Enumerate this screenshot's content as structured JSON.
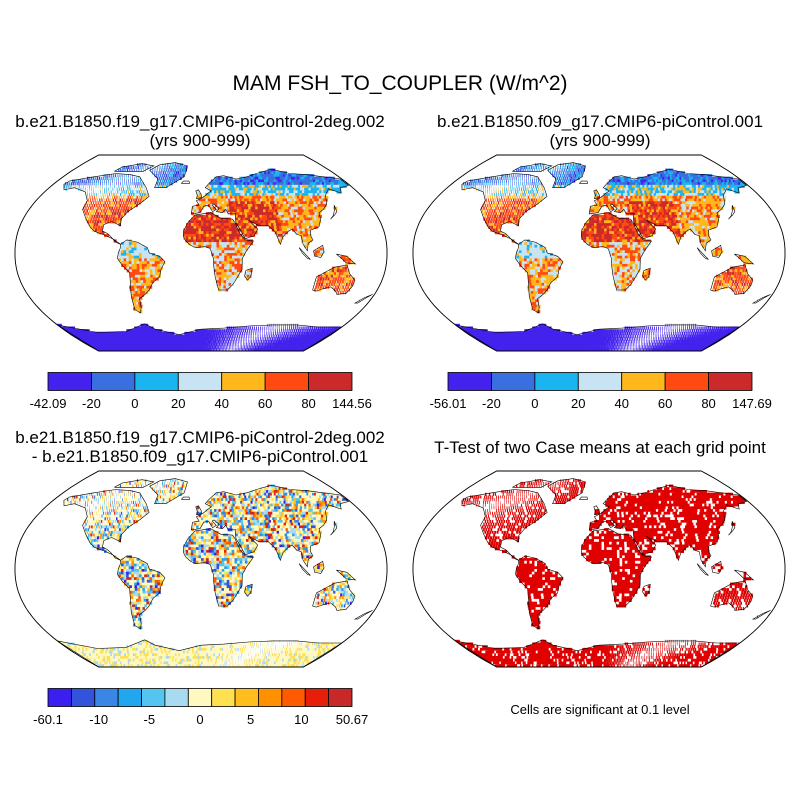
{
  "main_title": "MAM FSH_TO_COUPLER (W/m^2)",
  "panels": [
    {
      "id": "case1",
      "title_line1": "b.e21.B1850.f19_g17.CMIP6-piControl-2deg.002",
      "title_line2": "(yrs 900-999)",
      "colorbar": {
        "colors": [
          "#4422ee",
          "#3a6fe0",
          "#1ab4f0",
          "#c8e4f4",
          "#ffb81c",
          "#ff4a12",
          "#cc2a2a"
        ],
        "labels": [
          "-42.09",
          "-20",
          "0",
          "20",
          "40",
          "60",
          "80",
          "144.56"
        ]
      }
    },
    {
      "id": "case2",
      "title_line1": "b.e21.B1850.f09_g17.CMIP6-piControl.001",
      "title_line2": "(yrs 900-999)",
      "colorbar": {
        "colors": [
          "#4422ee",
          "#3a6fe0",
          "#1ab4f0",
          "#c8e4f4",
          "#ffb81c",
          "#ff4a12",
          "#cc2a2a"
        ],
        "labels": [
          "-56.01",
          "-20",
          "0",
          "20",
          "40",
          "60",
          "80",
          "147.69"
        ]
      }
    },
    {
      "id": "difference",
      "title_line1": "b.e21.B1850.f19_g17.CMIP6-piControl-2deg.002",
      "title_line2": "- b.e21.B1850.f09_g17.CMIP6-piControl.001",
      "colorbar": {
        "colors": [
          "#3a1ff0",
          "#3253dc",
          "#3a86e6",
          "#22a6f0",
          "#54c4f0",
          "#a8daf2",
          "#fff8c0",
          "#ffe050",
          "#ffbe1e",
          "#ff9000",
          "#ff5a00",
          "#e61e0a",
          "#c82828"
        ],
        "labels": [
          "-60.1",
          "-10",
          "-5",
          "0",
          "5",
          "10",
          "50.67"
        ]
      }
    },
    {
      "id": "ttest",
      "title_line1": "T-Test of two Case means at each grid point",
      "note": "Cells are significant at 0.1 level"
    }
  ]
}
